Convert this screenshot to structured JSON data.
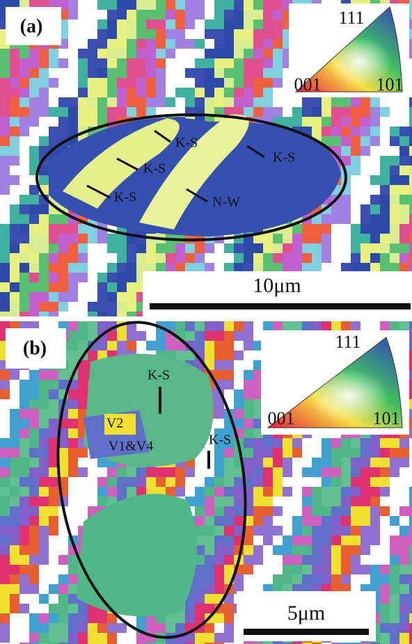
{
  "panels": [
    {
      "label": "(a)",
      "ipf": {
        "top": "111",
        "left": "001",
        "right": "101"
      },
      "annotations": [
        "K-S",
        "K-S",
        "K-S",
        "K-S",
        "N-W"
      ],
      "scale_bar": "10μm"
    },
    {
      "label": "(b)",
      "ipf": {
        "top": "111",
        "left": "001",
        "right": "101"
      },
      "annotations": [
        "K-S",
        "V2",
        "K-S",
        "V1&V4"
      ],
      "scale_bar": "5μm"
    }
  ]
}
